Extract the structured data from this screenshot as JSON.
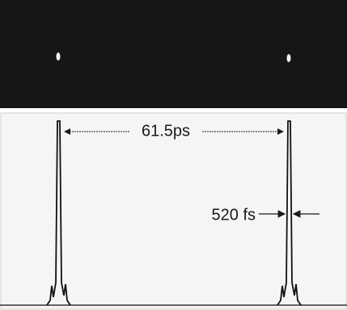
{
  "annotations": {
    "separation": "61.5ps",
    "pulse_width": "520 fs"
  }
}
